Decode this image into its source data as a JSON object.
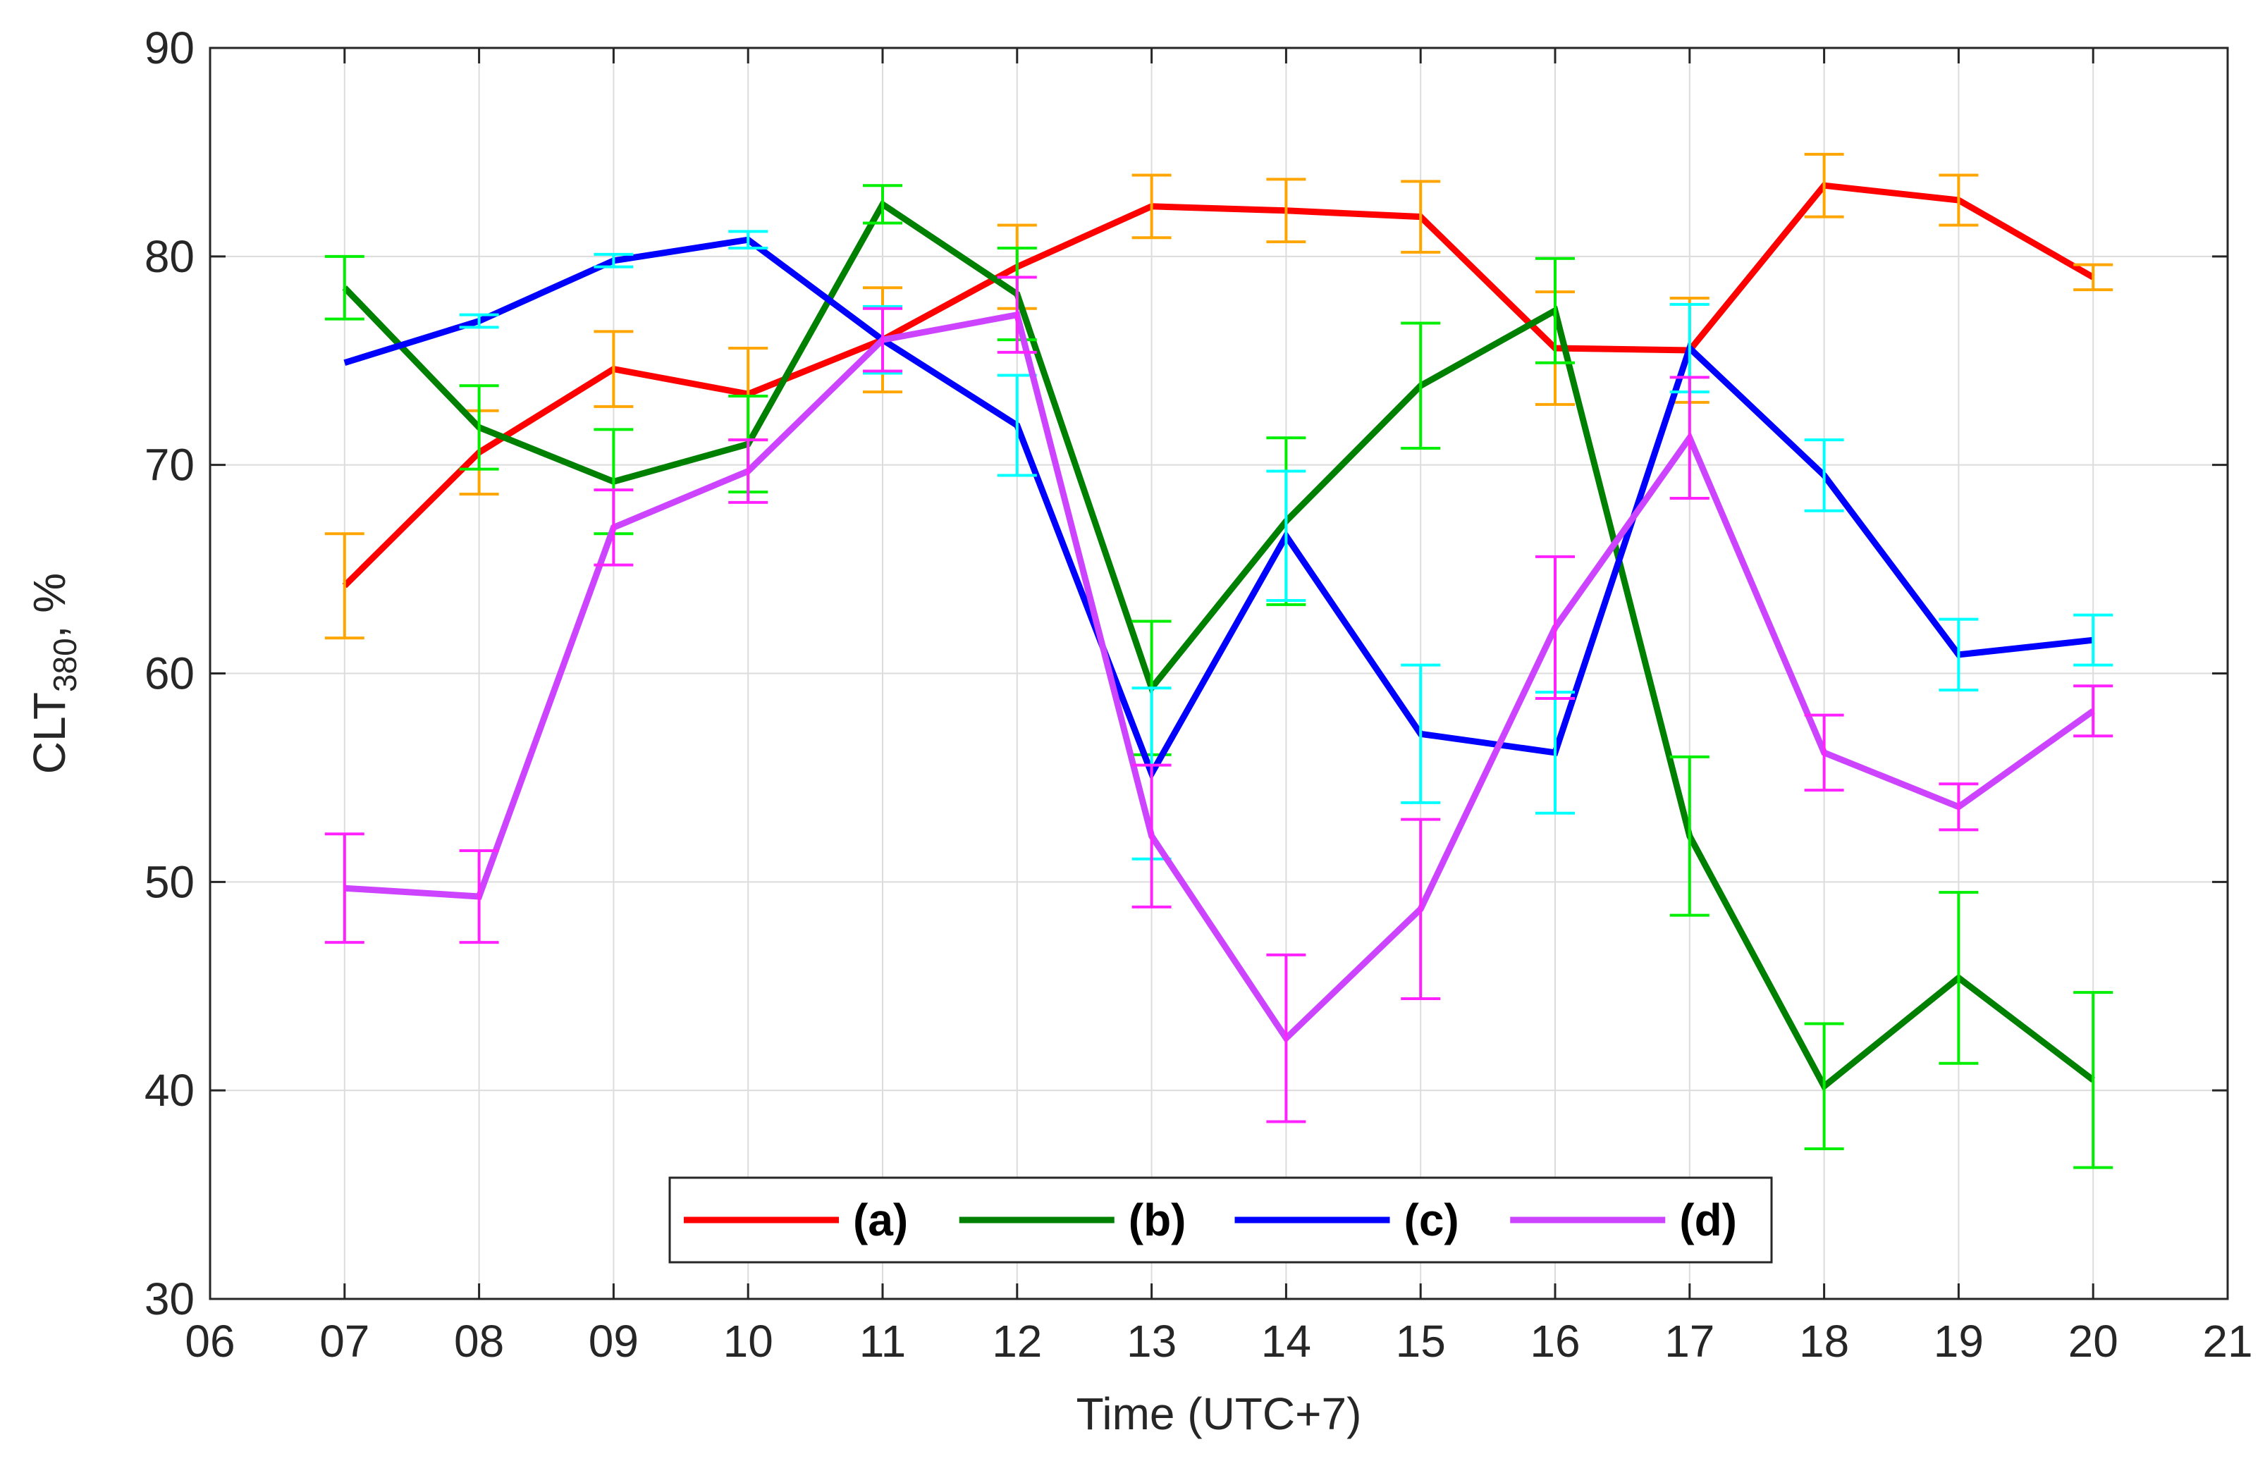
{
  "chart_data": {
    "type": "line",
    "title": "",
    "xlabel": "Time (UTC+7)",
    "ylabel": {
      "main": "CLT",
      "subscript": "380",
      "suffix": ", %"
    },
    "xlim": [
      6,
      21
    ],
    "ylim": [
      30,
      90
    ],
    "xticks": [
      "06",
      "07",
      "08",
      "09",
      "10",
      "11",
      "12",
      "13",
      "14",
      "15",
      "16",
      "17",
      "18",
      "19",
      "20",
      "21"
    ],
    "yticks": [
      "30",
      "40",
      "50",
      "60",
      "70",
      "80",
      "90"
    ],
    "grid": true,
    "legend": {
      "placement": "bottom-center",
      "orientation": "horizontal"
    },
    "x": [
      7,
      8,
      9,
      10,
      11,
      12,
      13,
      14,
      15,
      16,
      17,
      18,
      19,
      20
    ],
    "series": [
      {
        "name": "(a)",
        "color": "#ff0000",
        "error_color": "#ffa500",
        "values": [
          64.2,
          70.6,
          74.6,
          73.4,
          76.0,
          79.5,
          82.4,
          82.2,
          81.9,
          75.6,
          75.5,
          83.4,
          82.7,
          79.0
        ],
        "errors": [
          2.5,
          2.0,
          1.8,
          2.2,
          2.5,
          2.0,
          1.5,
          1.5,
          1.7,
          2.7,
          2.5,
          1.5,
          1.2,
          0.6
        ]
      },
      {
        "name": "(b)",
        "color": "#008000",
        "error_color": "#00ee00",
        "values": [
          78.5,
          71.8,
          69.2,
          71.0,
          82.5,
          78.2,
          59.3,
          67.3,
          73.8,
          77.4,
          52.2,
          40.2,
          45.4,
          40.5
        ],
        "errors": [
          1.5,
          2.0,
          2.5,
          2.3,
          0.9,
          2.2,
          3.2,
          4.0,
          3.0,
          2.5,
          3.8,
          3.0,
          4.1,
          4.2
        ]
      },
      {
        "name": "(c)",
        "color": "#0000ff",
        "error_color": "#00ffff",
        "values": [
          74.9,
          76.9,
          79.8,
          80.8,
          76.0,
          71.9,
          55.2,
          66.6,
          57.1,
          56.2,
          75.6,
          69.5,
          60.9,
          61.6
        ],
        "errors": [
          0.0,
          0.3,
          0.3,
          0.4,
          1.6,
          2.4,
          4.1,
          3.1,
          3.3,
          2.9,
          2.1,
          1.7,
          1.7,
          1.2
        ]
      },
      {
        "name": "(d)",
        "color": "#cc44ff",
        "error_color": "#ff22ff",
        "values": [
          49.7,
          49.3,
          67.0,
          69.7,
          76.0,
          77.2,
          52.2,
          42.5,
          48.7,
          62.2,
          71.3,
          56.2,
          53.6,
          58.2
        ],
        "errors": [
          2.6,
          2.2,
          1.8,
          1.5,
          1.5,
          1.8,
          3.4,
          4.0,
          4.3,
          3.4,
          2.9,
          1.8,
          1.1,
          1.2
        ]
      }
    ]
  }
}
